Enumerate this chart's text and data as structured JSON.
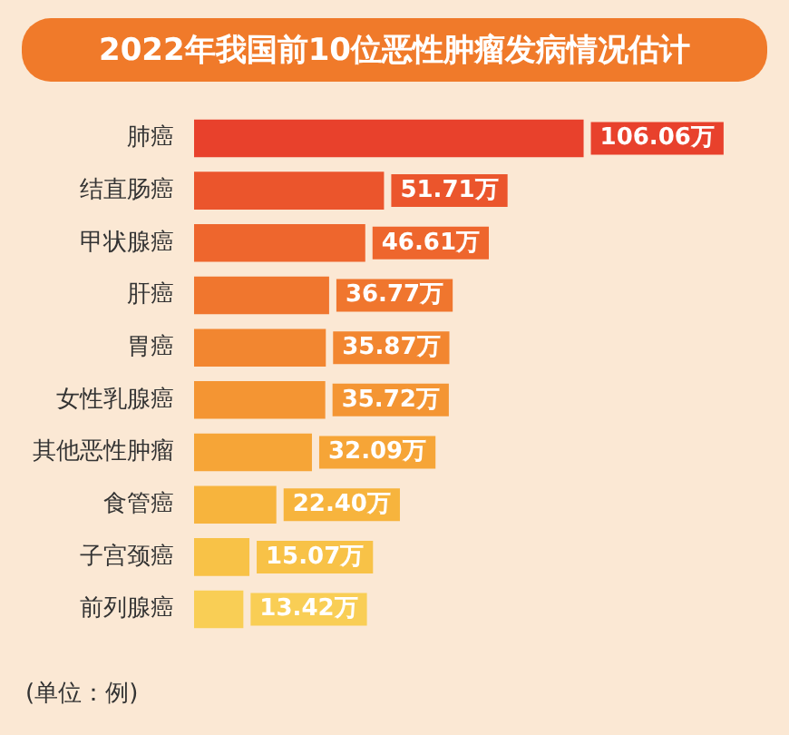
{
  "chart_data": {
    "type": "bar",
    "orientation": "horizontal",
    "title": "2022年我国前10位恶性肿瘤发病情况估计",
    "categories": [
      "肺癌",
      "结直肠癌",
      "甲状腺癌",
      "肝癌",
      "胃癌",
      "女性乳腺癌",
      "其他恶性肿瘤",
      "食管癌",
      "子宫颈癌",
      "前列腺癌"
    ],
    "values": [
      106.06,
      51.71,
      46.61,
      36.77,
      35.87,
      35.72,
      32.09,
      22.4,
      15.07,
      13.42
    ],
    "value_labels": [
      "106.06万",
      "51.71万",
      "46.61万",
      "36.77万",
      "35.87万",
      "35.72万",
      "32.09万",
      "22.40万",
      "15.07万",
      "13.42万"
    ],
    "colors": [
      "#e8412c",
      "#eb552c",
      "#ee662d",
      "#f0762e",
      "#f28630",
      "#f49533",
      "#f6a537",
      "#f7b43d",
      "#f8c247",
      "#f9ce55"
    ],
    "annotations": [
      "(单位：例)"
    ],
    "grid": false,
    "legend": false,
    "tick_labels": "y"
  }
}
